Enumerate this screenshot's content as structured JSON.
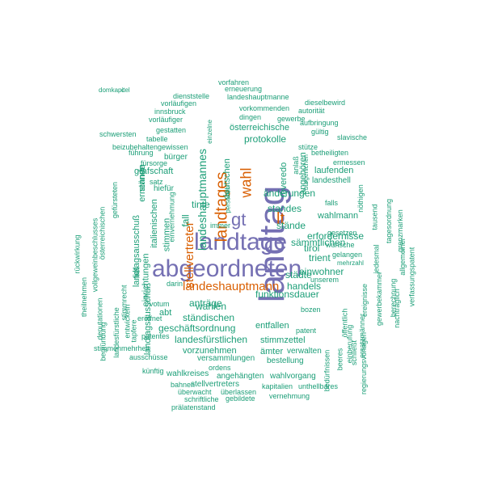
{
  "palette": {
    "teal": "#1b9e77",
    "orange": "#d95f02",
    "purple": "#7570b3"
  },
  "words": [
    {
      "text": "landtag",
      "color": "purple"
    },
    {
      "text": "landtage",
      "color": "purple"
    },
    {
      "text": "abgeordneten",
      "color": "purple"
    },
    {
      "text": "gt",
      "color": "purple"
    },
    {
      "text": "landtages",
      "color": "orange"
    },
    {
      "text": "lt",
      "color": "orange"
    },
    {
      "text": "wahl",
      "color": "orange"
    },
    {
      "text": "stellvertreter",
      "color": "orange"
    },
    {
      "text": "landeshauptmann",
      "color": "orange"
    },
    {
      "text": "landeshauptmannes",
      "color": "teal"
    },
    {
      "text": "protokolle",
      "color": "teal"
    },
    {
      "text": "österreichische",
      "color": "teal"
    },
    {
      "text": "deutschen",
      "color": "teal"
    },
    {
      "text": "roveredo",
      "color": "teal"
    },
    {
      "text": "anlaß",
      "color": "teal"
    },
    {
      "text": "angehören",
      "color": "teal"
    },
    {
      "text": "änderungen",
      "color": "teal"
    },
    {
      "text": "laufenden",
      "color": "teal"
    },
    {
      "text": "landesthell",
      "color": "teal"
    },
    {
      "text": "falls",
      "color": "teal"
    },
    {
      "text": "standes",
      "color": "teal"
    },
    {
      "text": "stände",
      "color": "teal"
    },
    {
      "text": "wahlmann",
      "color": "teal"
    },
    {
      "text": "erfordernisse",
      "color": "teal"
    },
    {
      "text": "tirol",
      "color": "teal"
    },
    {
      "text": "trient",
      "color": "teal"
    },
    {
      "text": "einwohner",
      "color": "teal"
    },
    {
      "text": "städte",
      "color": "teal"
    },
    {
      "text": "handels",
      "color": "teal"
    },
    {
      "text": "wahlen",
      "color": "teal"
    },
    {
      "text": "funktionsdauer",
      "color": "teal"
    },
    {
      "text": "ständischen",
      "color": "teal"
    },
    {
      "text": "anträge",
      "color": "teal"
    },
    {
      "text": "geschäftsordnung",
      "color": "teal"
    },
    {
      "text": "entfallen",
      "color": "teal"
    },
    {
      "text": "landesfürstlichen",
      "color": "teal"
    },
    {
      "text": "stimmzettel",
      "color": "teal"
    },
    {
      "text": "vorzunehmen",
      "color": "teal"
    },
    {
      "text": "ämter",
      "color": "teal"
    },
    {
      "text": "verwalten",
      "color": "teal"
    },
    {
      "text": "versammlungen",
      "color": "teal"
    },
    {
      "text": "bestellung",
      "color": "teal"
    },
    {
      "text": "wahlkreises",
      "color": "teal"
    },
    {
      "text": "angehängten",
      "color": "teal"
    },
    {
      "text": "wahlvorgang",
      "color": "teal"
    },
    {
      "text": "stellvertreters",
      "color": "teal"
    },
    {
      "text": "kapitalien",
      "color": "teal"
    },
    {
      "text": "unthellbares",
      "color": "teal"
    },
    {
      "text": "überwacht",
      "color": "teal"
    },
    {
      "text": "überlassen",
      "color": "teal"
    },
    {
      "text": "vernehmung",
      "color": "teal"
    },
    {
      "text": "schriftliche",
      "color": "teal"
    },
    {
      "text": "gebildete",
      "color": "teal"
    },
    {
      "text": "prälatenstand",
      "color": "teal"
    },
    {
      "text": "bahnen",
      "color": "teal"
    },
    {
      "text": "ordens",
      "color": "teal"
    },
    {
      "text": "künftig",
      "color": "teal"
    },
    {
      "text": "ausschüsse",
      "color": "teal"
    },
    {
      "text": "stimmenmehrheit",
      "color": "teal"
    },
    {
      "text": "patentes",
      "color": "teal"
    },
    {
      "text": "eröffnet",
      "color": "teal"
    },
    {
      "text": "abt",
      "color": "teal"
    },
    {
      "text": "votum",
      "color": "teal"
    },
    {
      "text": "darin",
      "color": "teal"
    },
    {
      "text": "vorfahren",
      "color": "teal"
    },
    {
      "text": "erneuerung",
      "color": "teal"
    },
    {
      "text": "dienststelle",
      "color": "teal"
    },
    {
      "text": "landeshauptmanne",
      "color": "teal"
    },
    {
      "text": "vorläufigen",
      "color": "teal"
    },
    {
      "text": "dieselbewird",
      "color": "teal"
    },
    {
      "text": "innsbruck",
      "color": "teal"
    },
    {
      "text": "autorität",
      "color": "teal"
    },
    {
      "text": "vorkommenden",
      "color": "teal"
    },
    {
      "text": "vorläufiger",
      "color": "teal"
    },
    {
      "text": "dingen",
      "color": "teal"
    },
    {
      "text": "gewerbe",
      "color": "teal"
    },
    {
      "text": "gestatten",
      "color": "teal"
    },
    {
      "text": "schwersten",
      "color": "teal"
    },
    {
      "text": "tabelle",
      "color": "teal"
    },
    {
      "text": "beizubehaltengewissen",
      "color": "teal"
    },
    {
      "text": "führung",
      "color": "teal"
    },
    {
      "text": "bürger",
      "color": "teal"
    },
    {
      "text": "fürsorge",
      "color": "teal"
    },
    {
      "text": "grafschaft",
      "color": "teal"
    },
    {
      "text": "satz",
      "color": "teal"
    },
    {
      "text": "hiefür",
      "color": "teal"
    },
    {
      "text": "stütze",
      "color": "teal"
    },
    {
      "text": "aufbringung",
      "color": "teal"
    },
    {
      "text": "gültig",
      "color": "teal"
    },
    {
      "text": "slavische",
      "color": "teal"
    },
    {
      "text": "betheiligten",
      "color": "teal"
    },
    {
      "text": "ermessen",
      "color": "teal"
    },
    {
      "text": "nöthigen",
      "color": "teal"
    },
    {
      "text": "tausend",
      "color": "teal"
    },
    {
      "text": "tagesordnung",
      "color": "teal"
    },
    {
      "text": "grenzmarken",
      "color": "teal"
    },
    {
      "text": "allgemeiner",
      "color": "teal"
    },
    {
      "text": "verfassungspatent",
      "color": "teal"
    },
    {
      "text": "nachträglich",
      "color": "teal"
    },
    {
      "text": "berechnung",
      "color": "teal"
    },
    {
      "text": "gewerbekammer",
      "color": "teal"
    },
    {
      "text": "jedesmal",
      "color": "teal"
    },
    {
      "text": "gesetzen",
      "color": "teal"
    },
    {
      "text": "wünsche",
      "color": "teal"
    },
    {
      "text": "gelangen",
      "color": "teal"
    },
    {
      "text": "mehrzahl",
      "color": "teal"
    },
    {
      "text": "unserem",
      "color": "teal"
    },
    {
      "text": "bozen",
      "color": "teal"
    },
    {
      "text": "patent",
      "color": "teal"
    },
    {
      "text": "öffentlich",
      "color": "teal"
    },
    {
      "text": "ereignisse",
      "color": "teal"
    },
    {
      "text": "regierungsvorlagen",
      "color": "teal"
    },
    {
      "text": "ersatzmänner",
      "color": "teal"
    },
    {
      "text": "einberufung",
      "color": "teal"
    },
    {
      "text": "schließt",
      "color": "teal"
    },
    {
      "text": "beeres",
      "color": "teal"
    },
    {
      "text": "bedürfnissen",
      "color": "teal"
    },
    {
      "text": "bürgerlichen",
      "color": "teal"
    },
    {
      "text": "einzelne",
      "color": "teal"
    },
    {
      "text": "personen",
      "color": "teal"
    },
    {
      "text": "immer",
      "color": "teal"
    },
    {
      "text": "tinte",
      "color": "teal"
    },
    {
      "text": "fall",
      "color": "teal"
    },
    {
      "text": "stimmen",
      "color": "teal"
    },
    {
      "text": "einrichtungen",
      "color": "teal"
    },
    {
      "text": "ernennen",
      "color": "teal"
    },
    {
      "text": "italienischen",
      "color": "teal"
    },
    {
      "text": "landtagsausschuß",
      "color": "teal"
    },
    {
      "text": "stände",
      "color": "teal"
    },
    {
      "text": "einvernehmung",
      "color": "teal"
    },
    {
      "text": "landtagsausschuß",
      "color": "teal"
    },
    {
      "text": "fiel",
      "color": "teal"
    },
    {
      "text": "stimmrecht",
      "color": "teal"
    },
    {
      "text": "gefürsteten",
      "color": "teal"
    },
    {
      "text": "österreichischen",
      "color": "teal"
    },
    {
      "text": "vollgeweinbeschlusses",
      "color": "teal"
    },
    {
      "text": "rückwirkung",
      "color": "teal"
    },
    {
      "text": "theilnehmen",
      "color": "teal"
    },
    {
      "text": "deputationen",
      "color": "teal"
    },
    {
      "text": "begründung",
      "color": "teal"
    },
    {
      "text": "landesfürstliche",
      "color": "teal"
    },
    {
      "text": "entwickeln",
      "color": "teal"
    },
    {
      "text": "tapfere",
      "color": "teal"
    },
    {
      "text": "sämmtlichen",
      "color": "teal"
    },
    {
      "text": "domkapitel",
      "color": "teal"
    },
    {
      "text": "c",
      "color": "teal"
    }
  ]
}
